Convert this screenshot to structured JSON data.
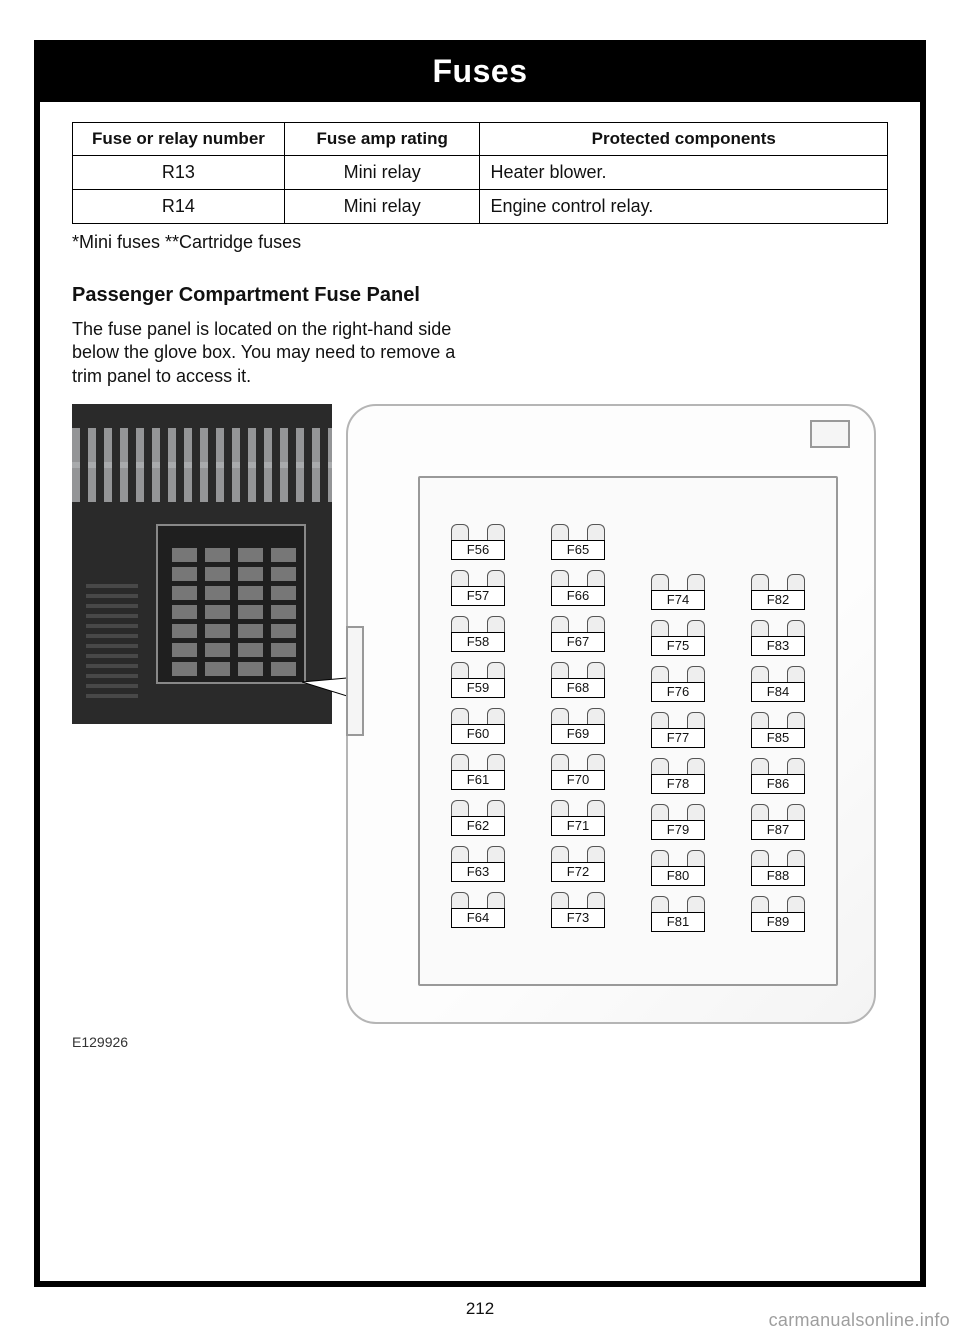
{
  "page": {
    "title": "Fuses",
    "number": "212",
    "image_code": "E129926",
    "watermark": "carmanualsonline.info"
  },
  "table": {
    "headers": [
      "Fuse or relay number",
      "Fuse amp rating",
      "Protected components"
    ],
    "col_widths_pct": [
      26,
      24,
      50
    ],
    "rows": [
      {
        "num": "R13",
        "rating": "Mini relay",
        "components": "Heater blower."
      },
      {
        "num": "R14",
        "rating": "Mini relay",
        "components": "Engine control relay."
      }
    ],
    "footnote": "*Mini fuses **Cartridge fuses"
  },
  "section": {
    "heading": "Passenger Compartment Fuse Panel",
    "body": "The fuse panel is located on the right-hand side below the glove box. You may need to remove a trim panel to access it."
  },
  "fuse_diagram": {
    "columns": [
      {
        "offset": false,
        "labels": [
          "F56",
          "F57",
          "F58",
          "F59",
          "F60",
          "F61",
          "F62",
          "F63",
          "F64"
        ]
      },
      {
        "offset": false,
        "labels": [
          "F65",
          "F66",
          "F67",
          "F68",
          "F69",
          "F70",
          "F71",
          "F72",
          "F73"
        ]
      },
      {
        "offset": true,
        "labels": [
          "F74",
          "F75",
          "F76",
          "F77",
          "F78",
          "F79",
          "F80",
          "F81"
        ]
      },
      {
        "offset": true,
        "labels": [
          "F82",
          "F83",
          "F84",
          "F85",
          "F86",
          "F87",
          "F88",
          "F89"
        ]
      }
    ]
  },
  "dash_grid_cells": 28,
  "colors": {
    "border": "#000000",
    "diagram_border": "#b5b5b5",
    "dash_bg": "#2a2a2a",
    "watermark": "#9e9e9e"
  }
}
